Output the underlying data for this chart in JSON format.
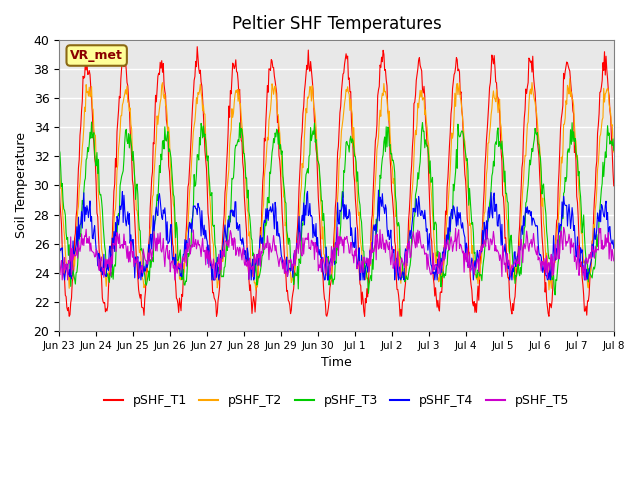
{
  "title": "Peltier SHF Temperatures",
  "ylabel": "Soil Temperature",
  "xlabel": "Time",
  "ylim": [
    20,
    40
  ],
  "annotation_text": "VR_met",
  "annotation_box_color": "#FFFF99",
  "annotation_text_color": "#8B0000",
  "background_color": "#E8E8E8",
  "figure_background": "#FFFFFF",
  "series": [
    "pSHF_T1",
    "pSHF_T2",
    "pSHF_T3",
    "pSHF_T4",
    "pSHF_T5"
  ],
  "colors": [
    "#FF0000",
    "#FFA500",
    "#00CC00",
    "#0000FF",
    "#CC00CC"
  ],
  "x_tick_labels": [
    "Jun 23",
    "Jun 24",
    "Jun 25",
    "Jun 26",
    "Jun 27",
    "Jun 28",
    "Jun 29",
    "Jun 30",
    "Jul 1",
    "Jul 2",
    "Jul 3",
    "Jul 4",
    "Jul 5",
    "Jul 6",
    "Jul 7",
    "Jul 8"
  ],
  "num_days": 15,
  "seed": 42
}
